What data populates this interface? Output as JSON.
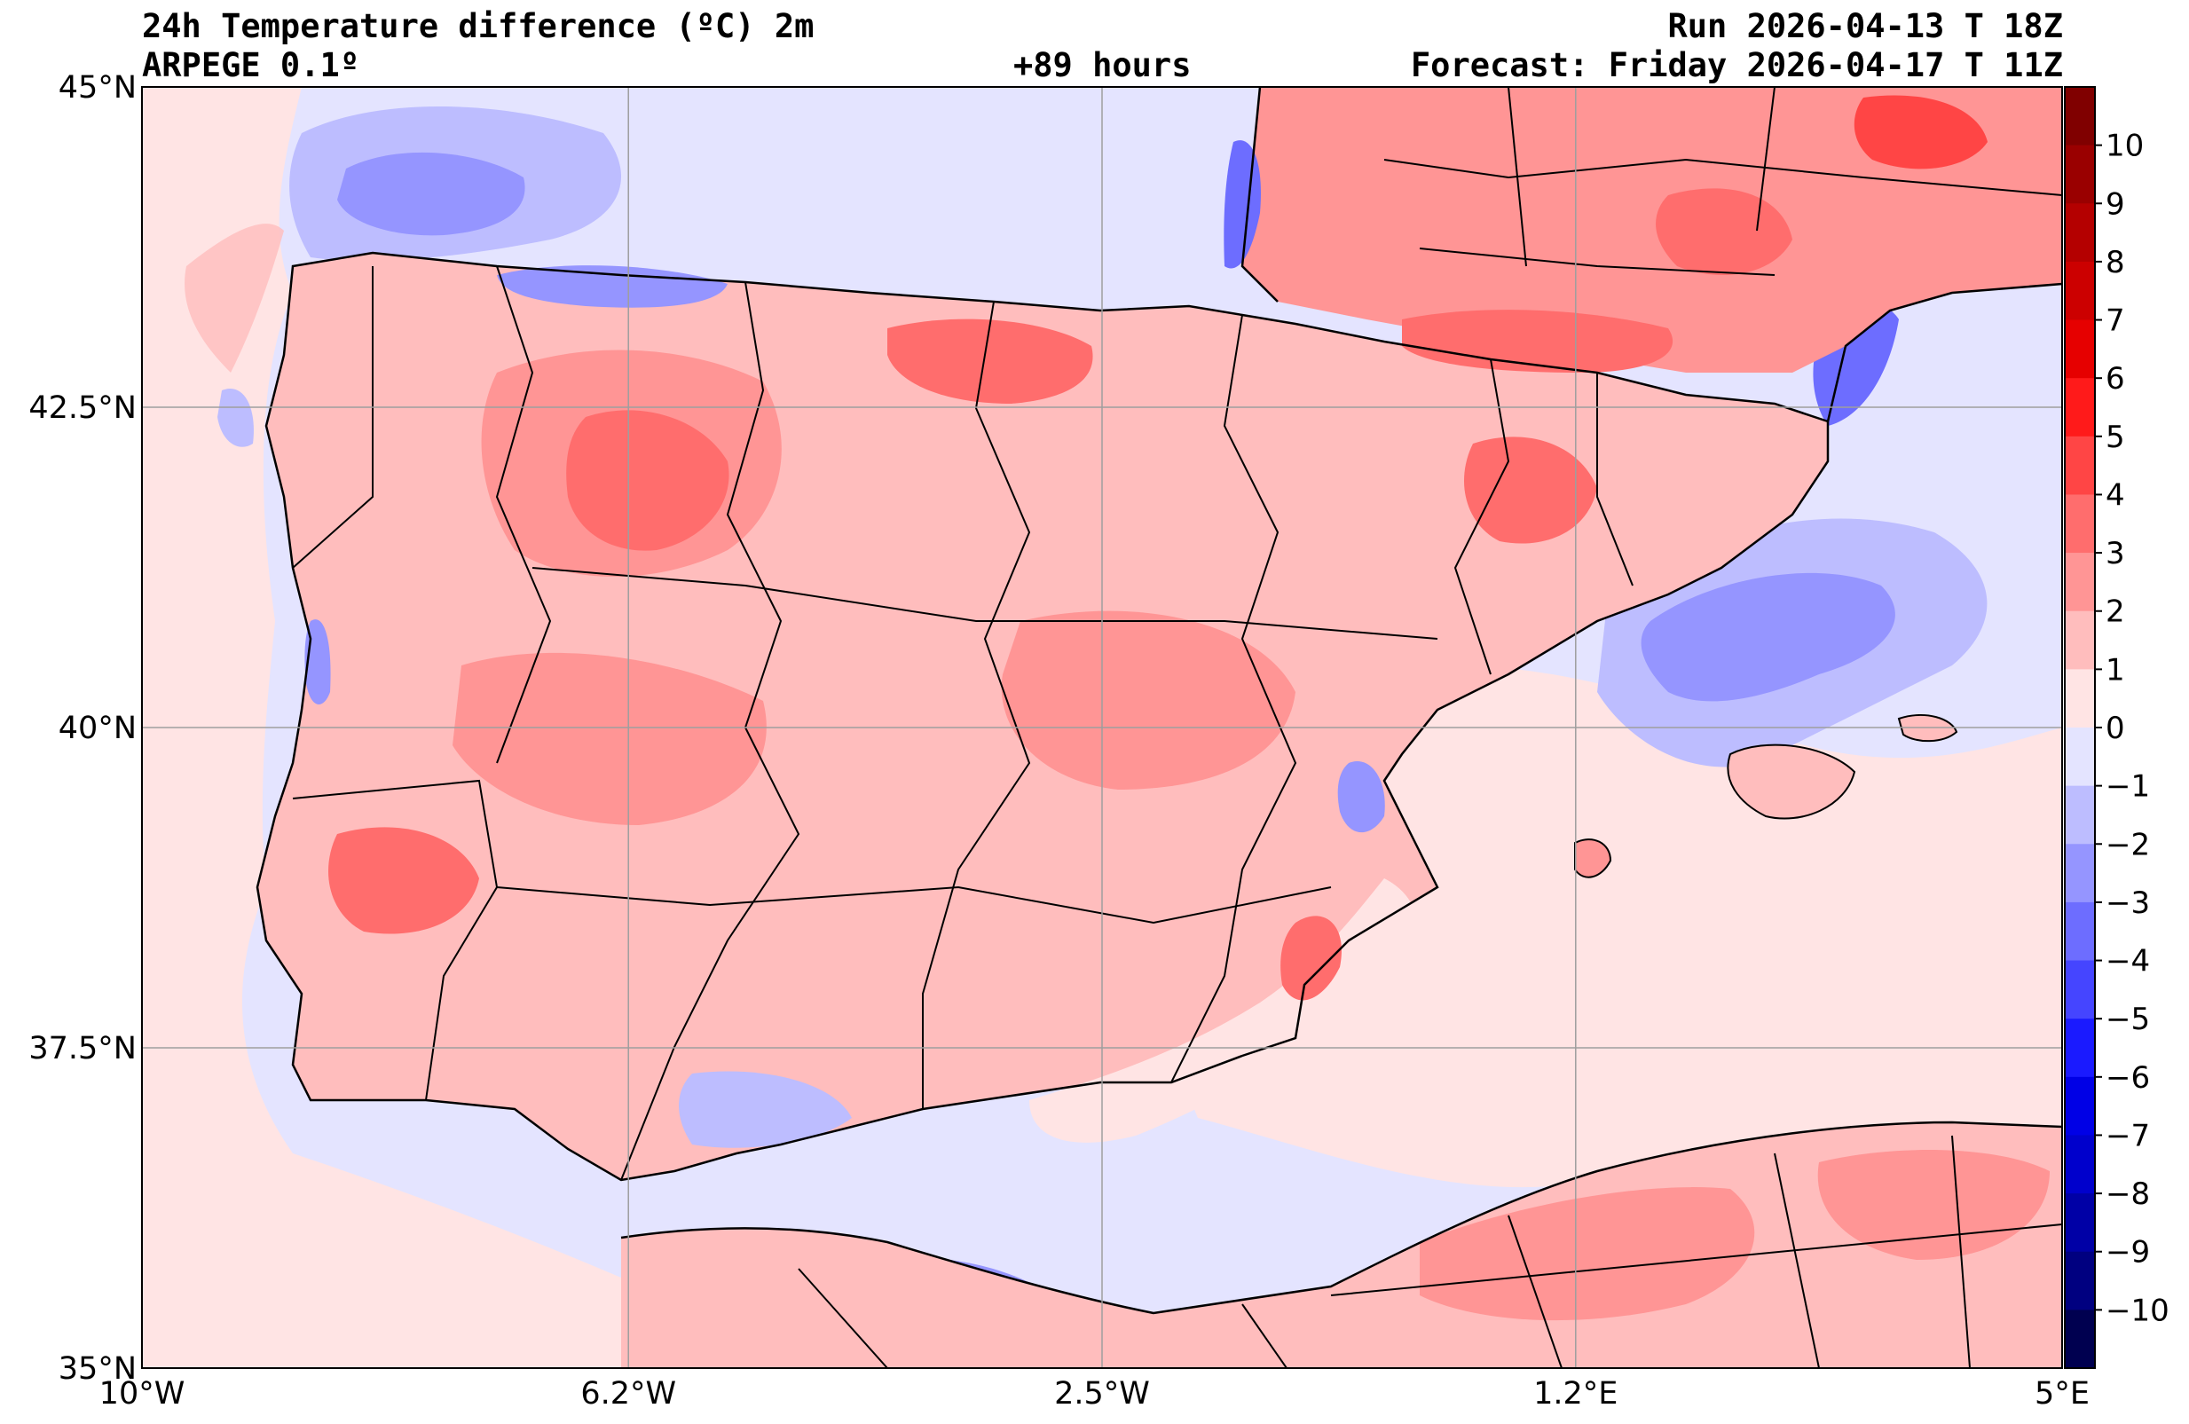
{
  "header": {
    "title": "24h Temperature difference (ºC) 2m",
    "model": "ARPEGE 0.1º",
    "lead": "+89 hours",
    "run": "Run 2026-04-13 T 18Z",
    "forecast": "Forecast: Friday 2026-04-17 T 11Z"
  },
  "map": {
    "lon_range": [
      -10,
      5
    ],
    "lat_range": [
      35,
      45
    ],
    "lon_ticks": [
      {
        "value": -10,
        "label": "10°W"
      },
      {
        "value": -6.2,
        "label": "6.2°W"
      },
      {
        "value": -2.5,
        "label": "2.5°W"
      },
      {
        "value": 1.2,
        "label": "1.2°E"
      },
      {
        "value": 5,
        "label": "5°E"
      }
    ],
    "lat_ticks": [
      {
        "value": 45,
        "label": "45°N"
      },
      {
        "value": 42.5,
        "label": "42.5°N"
      },
      {
        "value": 40,
        "label": "40°N"
      },
      {
        "value": 37.5,
        "label": "37.5°N"
      },
      {
        "value": 35,
        "label": "35°N"
      }
    ],
    "grid": true
  },
  "colorbar": {
    "labels": [
      "10",
      "9",
      "8",
      "7",
      "6",
      "5",
      "4",
      "3",
      "2",
      "1",
      "0",
      "−1",
      "−2",
      "−3",
      "−4",
      "−5",
      "−6",
      "−7",
      "−8",
      "−9",
      "−10"
    ],
    "colors": [
      "#800000",
      "#9a0000",
      "#b40000",
      "#cc0000",
      "#e60000",
      "#ff1a1a",
      "#ff4545",
      "#ff6d6d",
      "#ff9595",
      "#ffbdbd",
      "#ffe4e4",
      "#e4e4ff",
      "#bdbdff",
      "#9595ff",
      "#6d6dff",
      "#4545ff",
      "#1a1aff",
      "#0000e6",
      "#0000cc",
      "#0000a6",
      "#000080",
      "#000050"
    ]
  },
  "palette": {
    "ocean_base": "#e4e4ff",
    "land_base": "#ffbdbd"
  }
}
